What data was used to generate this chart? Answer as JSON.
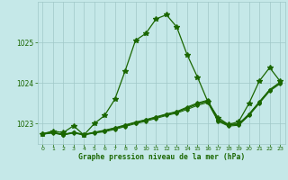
{
  "title": "Graphe pression niveau de la mer (hPa)",
  "background_color": "#c5e8e8",
  "grid_color": "#a0c8c8",
  "line_color": "#1a6600",
  "hours": [
    0,
    1,
    2,
    3,
    4,
    5,
    6,
    7,
    8,
    9,
    10,
    11,
    12,
    13,
    14,
    15,
    16,
    17,
    18,
    19,
    20,
    21,
    22,
    23
  ],
  "main_series": [
    1022.75,
    1022.82,
    1022.78,
    1022.95,
    1022.72,
    1023.0,
    1023.2,
    1023.6,
    1024.3,
    1025.05,
    1025.22,
    1025.58,
    1025.68,
    1025.38,
    1024.7,
    1024.15,
    1023.55,
    1023.15,
    1022.98,
    1023.05,
    1023.5,
    1024.05,
    1024.38,
    1024.05
  ],
  "band_series": [
    [
      1022.75,
      1022.78,
      1022.73,
      1022.78,
      1022.73,
      1022.78,
      1022.82,
      1022.88,
      1022.95,
      1023.02,
      1023.08,
      1023.15,
      1023.22,
      1023.28,
      1023.38,
      1023.48,
      1023.55,
      1023.08,
      1022.96,
      1022.98,
      1023.22,
      1023.52,
      1023.82,
      1024.0
    ],
    [
      1022.74,
      1022.77,
      1022.72,
      1022.77,
      1022.72,
      1022.77,
      1022.8,
      1022.86,
      1022.93,
      1023.0,
      1023.06,
      1023.13,
      1023.2,
      1023.26,
      1023.35,
      1023.45,
      1023.52,
      1023.06,
      1022.94,
      1022.96,
      1023.2,
      1023.5,
      1023.8,
      1023.98
    ],
    [
      1022.76,
      1022.79,
      1022.74,
      1022.79,
      1022.74,
      1022.79,
      1022.84,
      1022.9,
      1022.97,
      1023.04,
      1023.1,
      1023.17,
      1023.24,
      1023.3,
      1023.41,
      1023.51,
      1023.58,
      1023.1,
      1022.98,
      1023.0,
      1023.24,
      1023.54,
      1023.84,
      1024.02
    ],
    [
      1022.75,
      1022.78,
      1022.73,
      1022.78,
      1022.73,
      1022.78,
      1022.83,
      1022.89,
      1022.96,
      1023.03,
      1023.09,
      1023.16,
      1023.23,
      1023.29,
      1023.39,
      1023.49,
      1023.56,
      1023.09,
      1022.97,
      1022.99,
      1023.23,
      1023.53,
      1023.83,
      1024.01
    ]
  ],
  "ylim": [
    1022.5,
    1026.0
  ],
  "yticks": [
    1023,
    1024,
    1025
  ],
  "xlim": [
    -0.5,
    23.5
  ],
  "xticks": [
    0,
    1,
    2,
    3,
    4,
    5,
    6,
    7,
    8,
    9,
    10,
    11,
    12,
    13,
    14,
    15,
    16,
    17,
    18,
    19,
    20,
    21,
    22,
    23
  ]
}
